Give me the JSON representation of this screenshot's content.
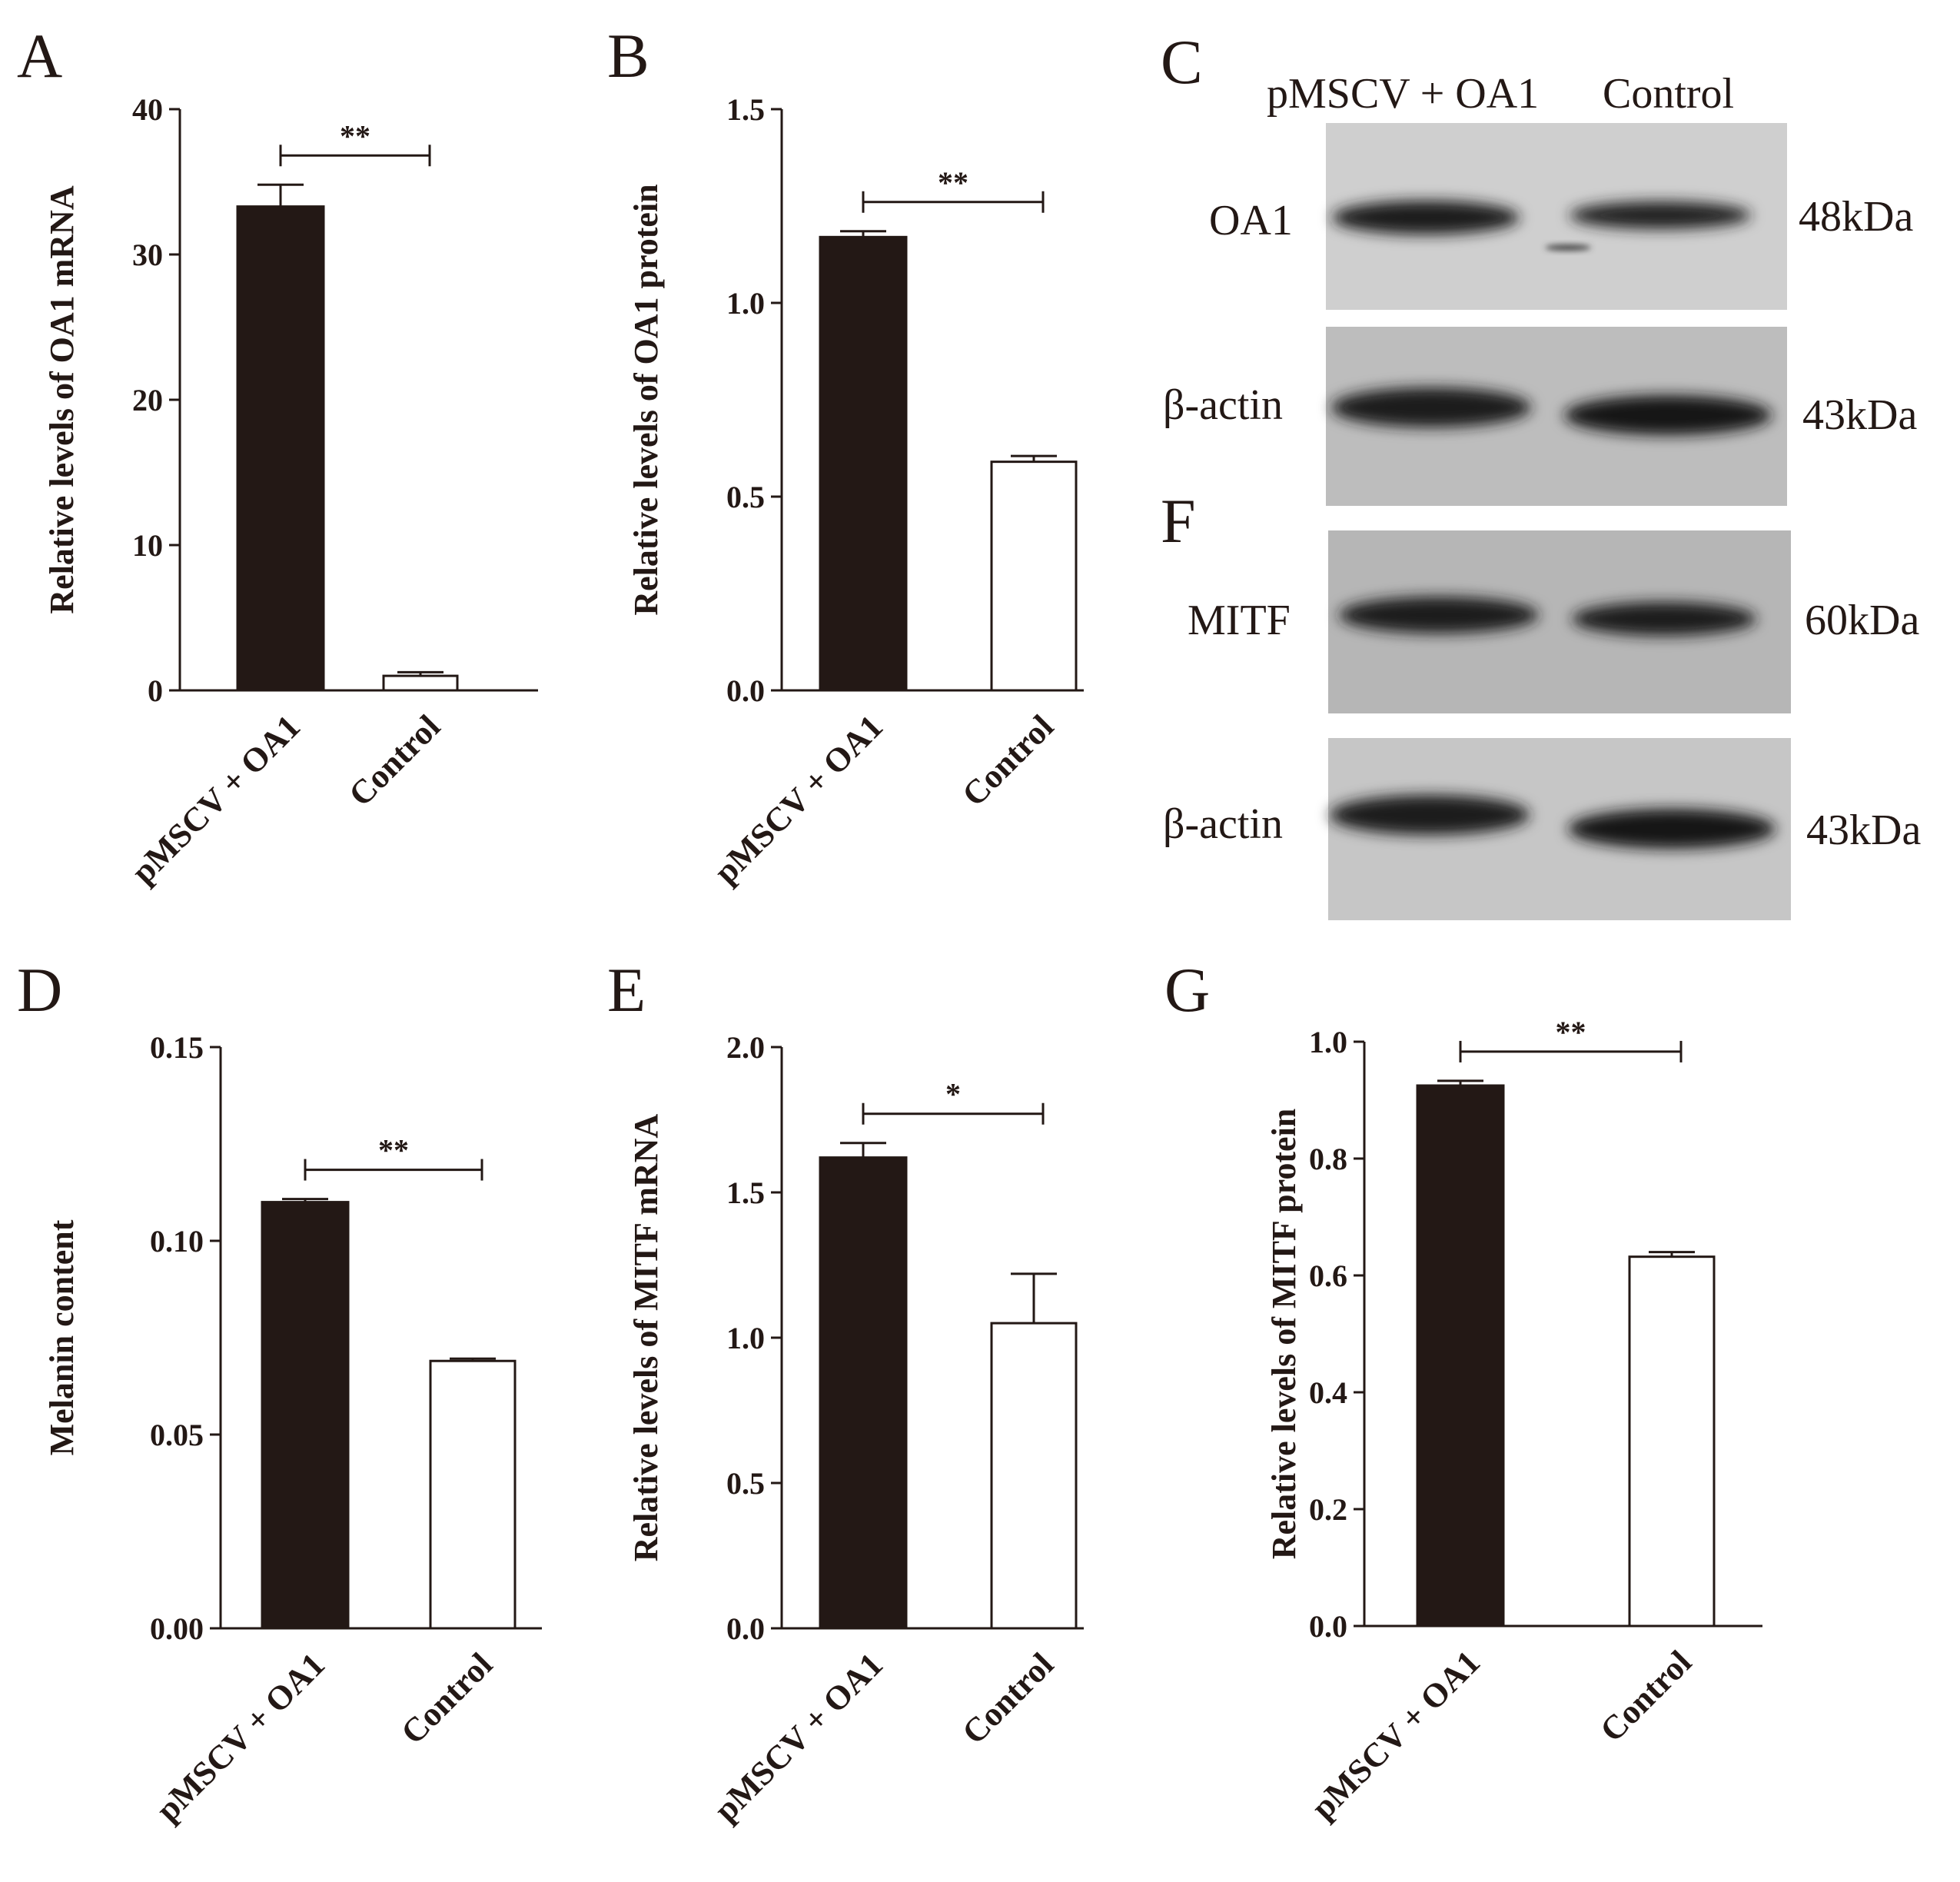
{
  "chart_data": [
    {
      "panel": "A",
      "type": "bar",
      "categories": [
        "pMSCV + OA1",
        "Control"
      ],
      "values": [
        33.3,
        1.0
      ],
      "errors": [
        1.5,
        0.25
      ],
      "colors": [
        "#231815",
        "#ffffff"
      ],
      "ylabel": "Relative levels of OA1 mRNA",
      "ylim": [
        0,
        40
      ],
      "yticks": [
        "0",
        "10",
        "20",
        "30",
        "40"
      ],
      "significance": "**"
    },
    {
      "panel": "B",
      "type": "bar",
      "categories": [
        "pMSCV + OA1",
        "Control"
      ],
      "values": [
        1.17,
        0.59
      ],
      "errors": [
        0.015,
        0.015
      ],
      "colors": [
        "#231815",
        "#ffffff"
      ],
      "ylabel": "Relative levels of OA1 protein",
      "ylim": [
        0,
        1.5
      ],
      "yticks": [
        "0.0",
        "0.5",
        "1.0",
        "1.5"
      ],
      "significance": "**"
    },
    {
      "panel": "D",
      "type": "bar",
      "categories": [
        "pMSCV + OA1",
        "Control"
      ],
      "values": [
        0.11,
        0.069
      ],
      "errors": [
        0.0008,
        0.0006
      ],
      "colors": [
        "#231815",
        "#ffffff"
      ],
      "ylabel": "Melanin content",
      "ylim": [
        0,
        0.15
      ],
      "yticks": [
        "0.00",
        "0.05",
        "0.10",
        "0.15"
      ],
      "significance": "**"
    },
    {
      "panel": "E",
      "type": "bar",
      "categories": [
        "pMSCV + OA1",
        "Control"
      ],
      "values": [
        1.62,
        1.05
      ],
      "errors": [
        0.05,
        0.17
      ],
      "colors": [
        "#231815",
        "#ffffff"
      ],
      "ylabel": "Relative levels of MITF mRNA",
      "ylim": [
        0,
        2.0
      ],
      "yticks": [
        "0.0",
        "0.5",
        "1.0",
        "1.5",
        "2.0"
      ],
      "significance": "*"
    },
    {
      "panel": "G",
      "type": "bar",
      "categories": [
        "pMSCV + OA1",
        "Control"
      ],
      "values": [
        0.925,
        0.632
      ],
      "errors": [
        0.008,
        0.008
      ],
      "colors": [
        "#231815",
        "#ffffff"
      ],
      "ylabel": "Relative levels of MITF protein",
      "ylim": [
        0,
        1.0
      ],
      "yticks": [
        "0.0",
        "0.2",
        "0.4",
        "0.6",
        "0.8",
        "1.0"
      ],
      "significance": "**"
    }
  ],
  "blots": {
    "c": {
      "letter": "C",
      "header_lane1": "pMSCV + OA1",
      "header_lane2": "Control",
      "row1": {
        "label": "OA1",
        "size": "48kDa"
      },
      "row2": {
        "label": "β-actin",
        "size": "43kDa"
      }
    },
    "f": {
      "letter": "F",
      "row1": {
        "label": "MITF",
        "size": "60kDa"
      },
      "row2": {
        "label": "β-actin",
        "size": "43kDa"
      }
    }
  }
}
